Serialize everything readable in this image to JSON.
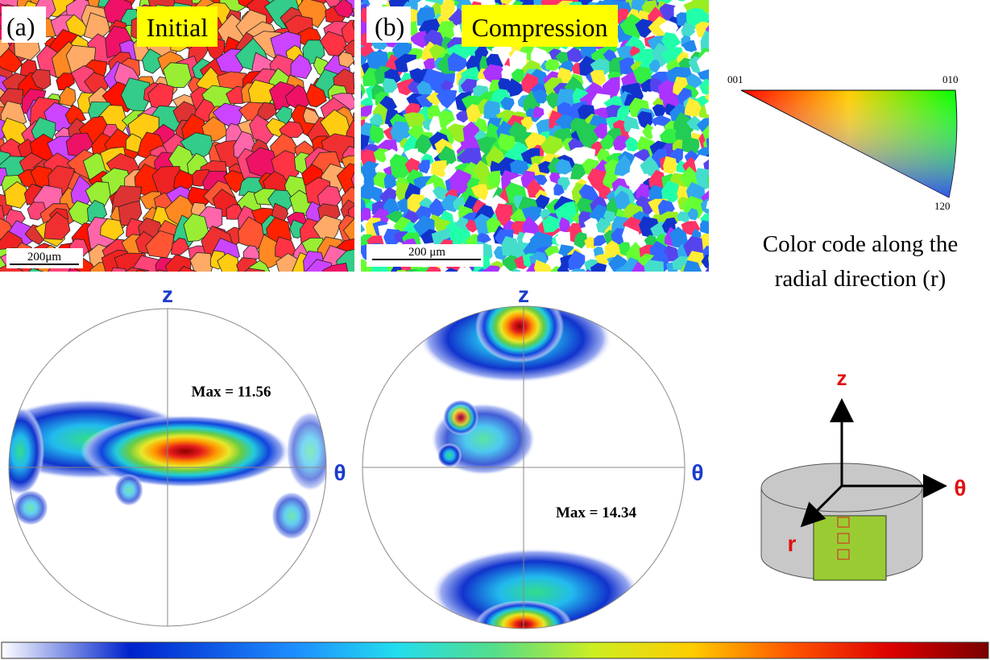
{
  "panel_a": {
    "label": "(a)",
    "title": "Initial",
    "scale_bar": "200μm"
  },
  "panel_b": {
    "label": "(b)",
    "title": "Compression",
    "scale_bar": "200 μm"
  },
  "color_key": {
    "corner_001": "001",
    "corner_010": "010",
    "corner_120": "120",
    "caption_line1": "Color code along the",
    "caption_line2": "radial direction (r)"
  },
  "pole_figure_1": {
    "z_label": "z",
    "theta_label": "θ",
    "max": "Max = 11.56"
  },
  "pole_figure_2": {
    "z_label": "z",
    "theta_label": "θ",
    "max": "Max = 14.34"
  },
  "schematic": {
    "z_label": "z",
    "theta_label": "θ",
    "r_label": "r"
  }
}
